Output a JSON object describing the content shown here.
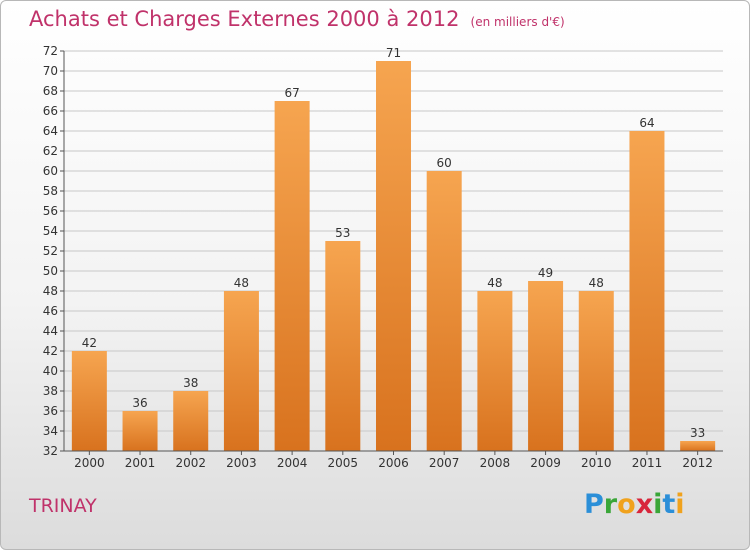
{
  "title": "Achats et Charges Externes 2000 à 2012",
  "unit_label": "(en milliers d'€)",
  "commune": "TRINAY",
  "logo_text": "Proxiti",
  "colors": {
    "bar_top": "#f6a550",
    "bar_bottom": "#d8721e",
    "title": "#c0326a",
    "grid": "#c8c8c8",
    "axis_text": "#333333"
  },
  "chart_data": {
    "type": "bar",
    "title": "Achats et Charges Externes 2000 à 2012",
    "subtitle": "(en milliers d'€)",
    "xlabel": "",
    "ylabel": "",
    "categories": [
      "2000",
      "2001",
      "2002",
      "2003",
      "2004",
      "2005",
      "2006",
      "2007",
      "2008",
      "2009",
      "2010",
      "2011",
      "2012"
    ],
    "values": [
      42,
      36,
      38,
      48,
      67,
      53,
      71,
      60,
      48,
      49,
      48,
      64,
      33
    ],
    "ylim": [
      32,
      72
    ],
    "yticks": [
      32,
      34,
      36,
      38,
      40,
      42,
      44,
      46,
      48,
      50,
      52,
      54,
      56,
      58,
      60,
      62,
      64,
      66,
      68,
      70,
      72
    ],
    "grid": true
  }
}
